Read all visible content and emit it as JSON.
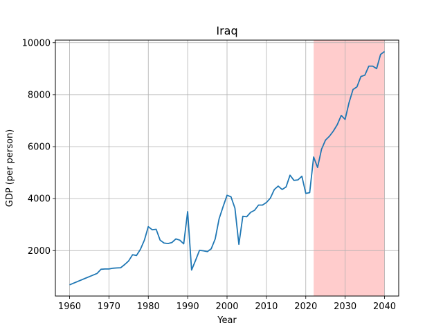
{
  "chart_data": {
    "type": "line",
    "title": "Iraq",
    "xlabel": "Year",
    "ylabel": "GDP (per person)",
    "xlim": [
      1956.4,
      2043.6
    ],
    "ylim": [
      250,
      10100
    ],
    "xticks": [
      1960,
      1970,
      1980,
      1990,
      2000,
      2010,
      2020,
      2030,
      2040
    ],
    "yticks": [
      2000,
      4000,
      6000,
      8000,
      10000
    ],
    "grid": true,
    "line_color": "#1f77b4",
    "shaded_region": {
      "x_start": 2022,
      "x_end": 2040,
      "color": "#ffcccc"
    },
    "series": [
      {
        "x": [
          1960,
          1967,
          1968,
          1969,
          1970,
          1971,
          1972,
          1973,
          1974,
          1975,
          1976,
          1977,
          1978,
          1979,
          1980,
          1981,
          1982,
          1983,
          1984,
          1985,
          1986,
          1987,
          1988,
          1989,
          1990,
          1991,
          1992,
          1993,
          1994,
          1995,
          1996,
          1997,
          1998,
          1999,
          2000,
          2001,
          2002,
          2003,
          2004,
          2005,
          2006,
          2007,
          2008,
          2009,
          2010,
          2011,
          2012,
          2013,
          2014,
          2015,
          2016,
          2017,
          2018,
          2019,
          2020,
          2021,
          2022,
          2023,
          2024,
          2025,
          2026,
          2027,
          2028,
          2029,
          2030,
          2031,
          2032,
          2033,
          2034,
          2035,
          2036,
          2037,
          2038,
          2039,
          2040
        ],
        "values": [
          680,
          1120,
          1280,
          1290,
          1290,
          1320,
          1330,
          1340,
          1460,
          1600,
          1840,
          1810,
          2050,
          2400,
          2920,
          2800,
          2820,
          2400,
          2290,
          2270,
          2310,
          2450,
          2400,
          2260,
          3500,
          1250,
          1620,
          2010,
          1990,
          1960,
          2070,
          2450,
          3230,
          3690,
          4130,
          4070,
          3630,
          2240,
          3320,
          3300,
          3470,
          3550,
          3750,
          3750,
          3850,
          4020,
          4350,
          4480,
          4350,
          4450,
          4900,
          4700,
          4720,
          4860,
          4200,
          4230,
          5600,
          5200,
          5900,
          6250,
          6400,
          6600,
          6850,
          7200,
          7050,
          7700,
          8200,
          8300,
          8700,
          8750,
          9100,
          9100,
          9000,
          9550,
          9660
        ]
      }
    ]
  }
}
